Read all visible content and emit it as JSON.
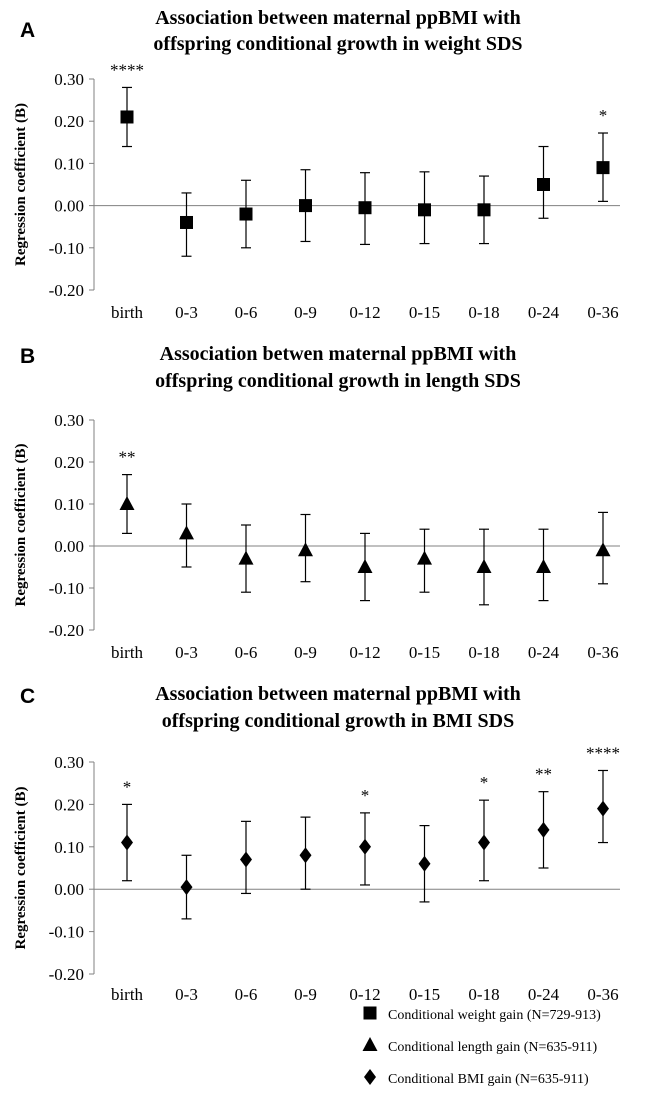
{
  "chart_data": [
    {
      "panel": "A",
      "type": "scatter",
      "title_lines": [
        "Association between maternal ppBMI with",
        "offspring conditional growth in weight SDS"
      ],
      "ylabel": "Regression coefficient (B)",
      "ylim": [
        -0.2,
        0.3
      ],
      "yticks": [
        "0.30",
        "0.20",
        "0.10",
        "0.00",
        "-0.10",
        "-0.20"
      ],
      "categories": [
        "birth",
        "0-3",
        "0-6",
        "0-9",
        "0-12",
        "0-15",
        "0-18",
        "0-24",
        "0-36"
      ],
      "marker": "square",
      "series": [
        {
          "values": [
            0.21,
            -0.04,
            -0.02,
            0.0,
            -0.005,
            -0.01,
            -0.01,
            0.05,
            0.09
          ],
          "upper": [
            0.28,
            0.03,
            0.06,
            0.085,
            0.078,
            0.08,
            0.07,
            0.14,
            0.172
          ],
          "lower": [
            0.14,
            -0.12,
            -0.1,
            -0.085,
            -0.092,
            -0.09,
            -0.09,
            -0.03,
            0.01
          ]
        }
      ],
      "significance": [
        "****",
        "",
        "",
        "",
        "",
        "",
        "",
        "",
        "*"
      ]
    },
    {
      "panel": "B",
      "type": "scatter",
      "title_lines": [
        "Association betwen maternal ppBMI with",
        "offspring conditional growth in length SDS"
      ],
      "ylabel": "Regression coefficient (B)",
      "ylim": [
        -0.2,
        0.3
      ],
      "yticks": [
        "0.30",
        "0.20",
        "0.10",
        "0.00",
        "-0.10",
        "-0.20"
      ],
      "categories": [
        "birth",
        "0-3",
        "0-6",
        "0-9",
        "0-12",
        "0-15",
        "0-18",
        "0-24",
        "0-36"
      ],
      "marker": "triangle",
      "series": [
        {
          "values": [
            0.1,
            0.03,
            -0.03,
            -0.01,
            -0.05,
            -0.03,
            -0.05,
            -0.05,
            -0.01
          ],
          "upper": [
            0.17,
            0.1,
            0.05,
            0.075,
            0.03,
            0.04,
            0.04,
            0.04,
            0.08
          ],
          "lower": [
            0.03,
            -0.05,
            -0.11,
            -0.085,
            -0.13,
            -0.11,
            -0.14,
            -0.13,
            -0.09
          ]
        }
      ],
      "significance": [
        "**",
        "",
        "",
        "",
        "",
        "",
        "",
        "",
        ""
      ]
    },
    {
      "panel": "C",
      "type": "scatter",
      "title_lines": [
        "Association between maternal ppBMI with",
        "offspring conditional growth in BMI SDS"
      ],
      "ylabel": "Regression coefficient (B)",
      "ylim": [
        -0.2,
        0.3
      ],
      "yticks": [
        "0.30",
        "0.20",
        "0.10",
        "0.00",
        "-0.10",
        "-0.20"
      ],
      "categories": [
        "birth",
        "0-3",
        "0-6",
        "0-9",
        "0-12",
        "0-15",
        "0-18",
        "0-24",
        "0-36"
      ],
      "marker": "diamond",
      "series": [
        {
          "values": [
            0.11,
            0.005,
            0.07,
            0.08,
            0.1,
            0.06,
            0.11,
            0.14,
            0.19
          ],
          "upper": [
            0.2,
            0.08,
            0.16,
            0.17,
            0.18,
            0.15,
            0.21,
            0.23,
            0.28
          ],
          "lower": [
            0.02,
            -0.07,
            -0.01,
            0.0,
            0.01,
            -0.03,
            0.02,
            0.05,
            0.11
          ]
        }
      ],
      "significance": [
        "*",
        "",
        "",
        "",
        "*",
        "",
        "*",
        "**",
        "****"
      ]
    }
  ],
  "legend": [
    {
      "marker": "square",
      "label": "Conditional weight gain (N=729-913)"
    },
    {
      "marker": "triangle",
      "label": "Conditional length gain (N=635-911)"
    },
    {
      "marker": "diamond",
      "label": "Conditional BMI gain (N=635-911)"
    }
  ],
  "colors": {
    "ink": "#000000",
    "axis": "#808080"
  }
}
